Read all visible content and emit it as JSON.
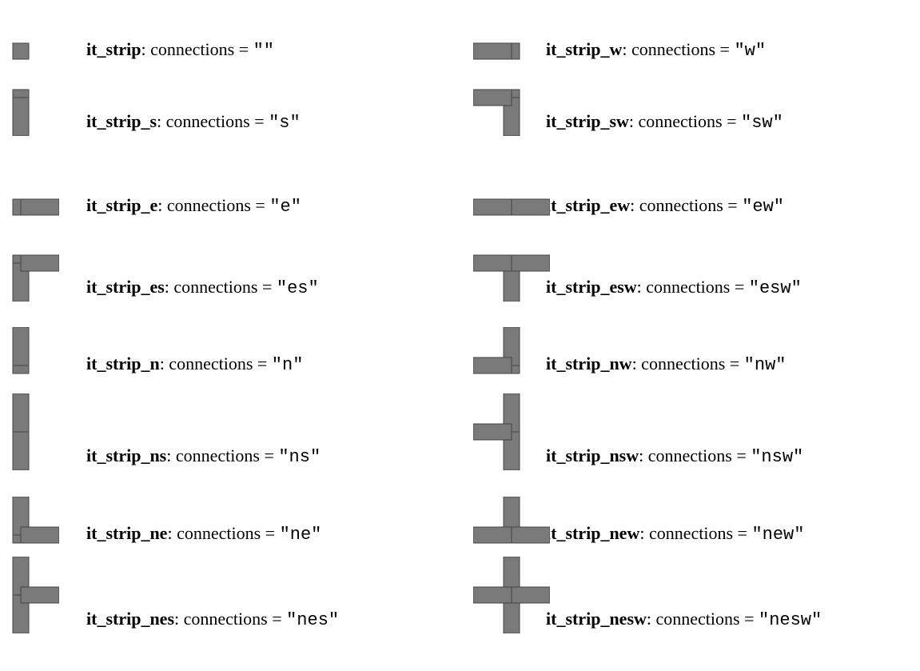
{
  "items": [
    {
      "name": "it_strip",
      "caption": ": connections =",
      "code": "\"\""
    },
    {
      "name": "it_strip_w",
      "caption": ": connections =",
      "code": "\"w\""
    },
    {
      "name": "it_strip_s",
      "caption": ": connections =",
      "code": "\"s\""
    },
    {
      "name": "it_strip_sw",
      "caption": ": connections =",
      "code": "\"sw\""
    },
    {
      "name": "it_strip_e",
      "caption": ": connections =",
      "code": "\"e\""
    },
    {
      "name": "it_strip_ew",
      "caption": ": connections =",
      "code": "\"ew\""
    },
    {
      "name": "it_strip_es",
      "caption": ": connections =",
      "code": "\"es\""
    },
    {
      "name": "it_strip_esw",
      "caption": ": connections =",
      "code": "\"esw\""
    },
    {
      "name": "it_strip_n",
      "caption": ": connections =",
      "code": "\"n\""
    },
    {
      "name": "it_strip_nw",
      "caption": ": connections =",
      "code": "\"nw\""
    },
    {
      "name": "it_strip_ns",
      "caption": ": connections =",
      "code": "\"ns\""
    },
    {
      "name": "it_strip_nsw",
      "caption": ": connections =",
      "code": "\"nsw\""
    },
    {
      "name": "it_strip_ne",
      "caption": ": connections =",
      "code": "\"ne\""
    },
    {
      "name": "it_strip_new",
      "caption": ": connections =",
      "code": "\"new\""
    },
    {
      "name": "it_strip_nes",
      "caption": ": connections =",
      "code": "\"nes\""
    },
    {
      "name": "it_strip_nesw",
      "caption": ": connections =",
      "code": "\"nesw\""
    }
  ]
}
